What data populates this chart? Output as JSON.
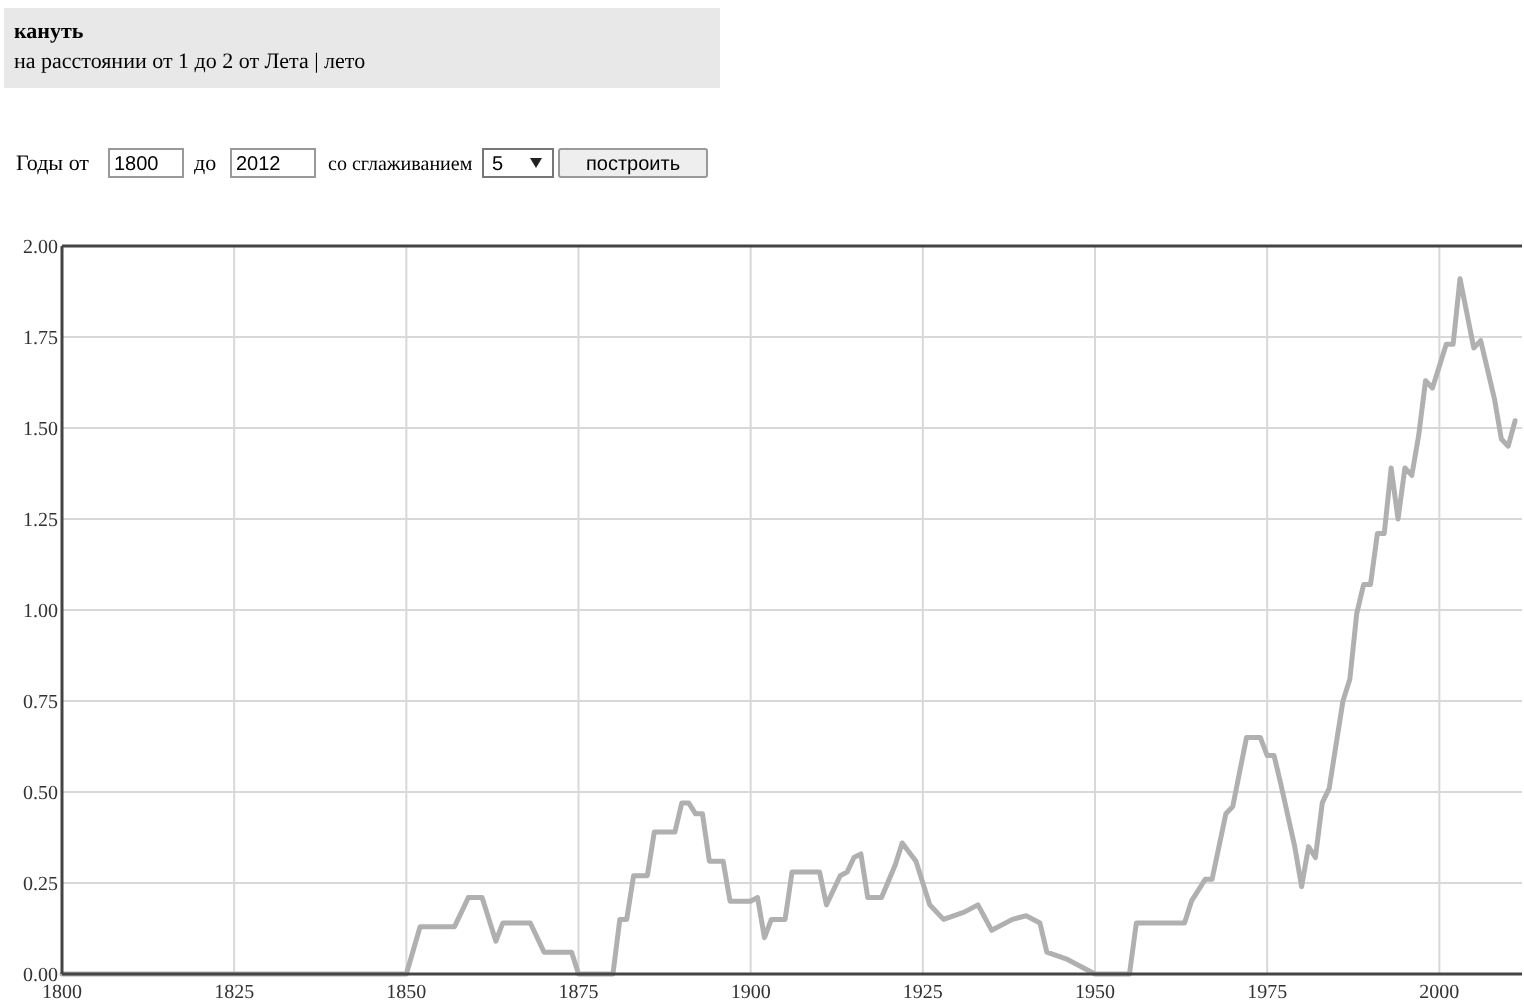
{
  "chart_data": {
    "type": "line",
    "title": "кануть",
    "subtitle": "на расстоянии от 1 до 2 от Лета | лето",
    "annotations": [
      "Годы от",
      "1800",
      "до",
      "2012",
      "со сглаживанием",
      "5",
      "построить"
    ],
    "x": [
      1800,
      1850,
      1852,
      1857,
      1859,
      1861,
      1863,
      1864,
      1868,
      1870,
      1874,
      1875,
      1880,
      1881,
      1882,
      1883,
      1885,
      1886,
      1889,
      1890,
      1891,
      1892,
      1893,
      1894,
      1896,
      1897,
      1900,
      1901,
      1902,
      1903,
      1905,
      1906,
      1910,
      1911,
      1913,
      1914,
      1915,
      1916,
      1917,
      1919,
      1921,
      1922,
      1924,
      1926,
      1928,
      1931,
      1933,
      1935,
      1938,
      1940,
      1942,
      1943,
      1946,
      1950,
      1955,
      1956,
      1963,
      1964,
      1966,
      1967,
      1969,
      1970,
      1972,
      1974,
      1975,
      1976,
      1977,
      1979,
      1980,
      1981,
      1982,
      1983,
      1984,
      1986,
      1987,
      1988,
      1989,
      1990,
      1991,
      1992,
      1993,
      1994,
      1995,
      1996,
      1997,
      1998,
      1999,
      2001,
      2002,
      2003,
      2005,
      2006,
      2008,
      2009,
      2010,
      2011
    ],
    "series": [
      {
        "color": "#b0b0b0",
        "values": [
          0,
          0,
          0.13,
          0.13,
          0.21,
          0.21,
          0.09,
          0.14,
          0.14,
          0.06,
          0.06,
          0,
          0,
          0.15,
          0.15,
          0.27,
          0.27,
          0.39,
          0.39,
          0.47,
          0.47,
          0.44,
          0.44,
          0.31,
          0.31,
          0.2,
          0.2,
          0.21,
          0.1,
          0.15,
          0.15,
          0.28,
          0.28,
          0.19,
          0.27,
          0.28,
          0.32,
          0.33,
          0.21,
          0.21,
          0.3,
          0.36,
          0.31,
          0.19,
          0.15,
          0.17,
          0.19,
          0.12,
          0.15,
          0.16,
          0.14,
          0.06,
          0.04,
          0,
          0,
          0.14,
          0.14,
          0.2,
          0.26,
          0.26,
          0.44,
          0.46,
          0.65,
          0.65,
          0.6,
          0.6,
          0.52,
          0.35,
          0.24,
          0.35,
          0.32,
          0.47,
          0.51,
          0.75,
          0.81,
          0.99,
          1.07,
          1.07,
          1.21,
          1.21,
          1.39,
          1.25,
          1.39,
          1.37,
          1.48,
          1.63,
          1.61,
          1.73,
          1.73,
          1.91,
          1.72,
          1.74,
          1.58,
          1.47,
          1.45,
          1.52
        ]
      }
    ],
    "xlim": [
      1800,
      2012
    ],
    "ylim": [
      0,
      2
    ],
    "xticks": [
      1800,
      1825,
      1850,
      1875,
      1900,
      1925,
      1950,
      1975,
      2000
    ],
    "yticks": [
      {
        "value": 0,
        "label": "0.00"
      },
      {
        "value": 0.25,
        "label": "0.25"
      },
      {
        "value": 0.5,
        "label": "0.50"
      },
      {
        "value": 0.75,
        "label": "0.75"
      },
      {
        "value": 1,
        "label": "1.00"
      },
      {
        "value": 1.25,
        "label": "1.25"
      },
      {
        "value": 1.5,
        "label": "1.50"
      },
      {
        "value": 1.75,
        "label": "1.75"
      },
      {
        "value": 2,
        "label": "2.00"
      }
    ],
    "grid": true,
    "marker": "none",
    "line_style": "solid"
  }
}
